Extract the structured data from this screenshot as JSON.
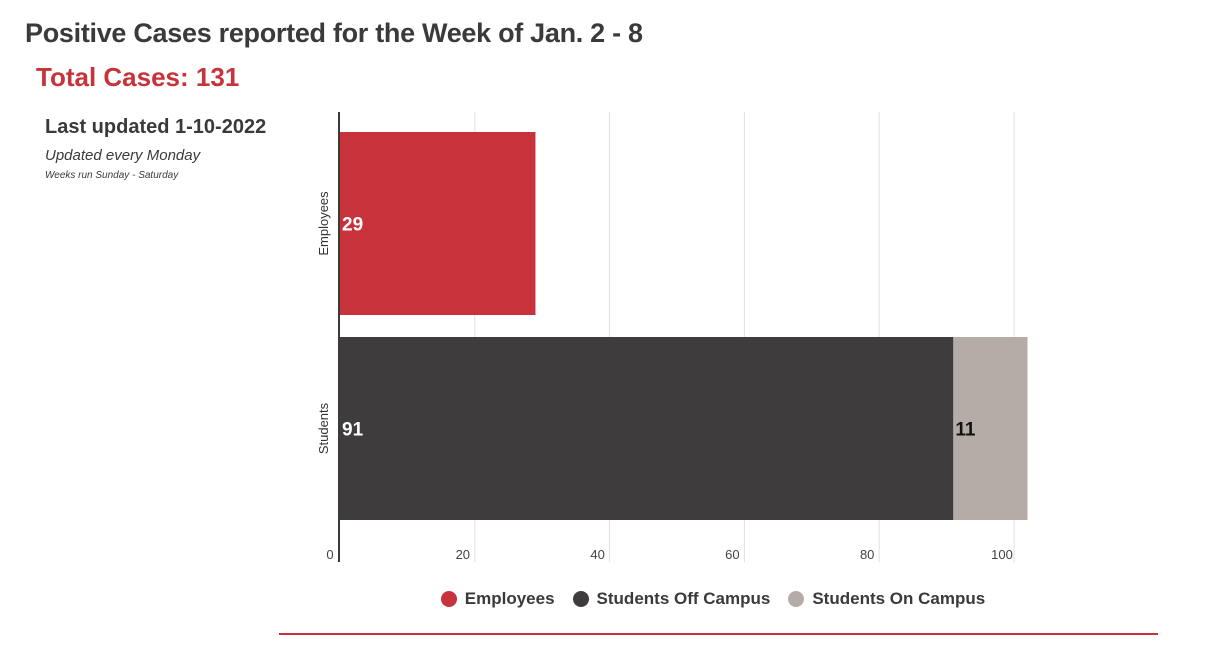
{
  "header": {
    "title": "Positive Cases reported for the Week of Jan. 2 - 8",
    "total_cases": "Total Cases: 131",
    "last_updated": "Last updated 1-10-2022",
    "update_frequency": "Updated every Monday",
    "week_note": "Weeks run Sunday - Saturday"
  },
  "chart_data": {
    "type": "bar",
    "orientation": "horizontal",
    "stacked": true,
    "categories": [
      "Employees",
      "Students"
    ],
    "series": [
      {
        "name": "Employees",
        "color": "#c8323a",
        "values": [
          29,
          0
        ]
      },
      {
        "name": "Students Off Campus",
        "color": "#3e3c3d",
        "values": [
          0,
          91
        ]
      },
      {
        "name": "Students On Campus",
        "color": "#b5aca8",
        "values": [
          0,
          11
        ]
      }
    ],
    "data_labels": [
      {
        "category": "Employees",
        "series": "Employees",
        "text": "29"
      },
      {
        "category": "Students",
        "series": "Students Off Campus",
        "text": "91"
      },
      {
        "category": "Students",
        "series": "Students On Campus",
        "text": "11"
      }
    ],
    "x_ticks": [
      "0",
      "20",
      "40",
      "60",
      "80",
      "100"
    ],
    "xlim": [
      0,
      103
    ],
    "grid": true,
    "legend_position": "bottom"
  }
}
